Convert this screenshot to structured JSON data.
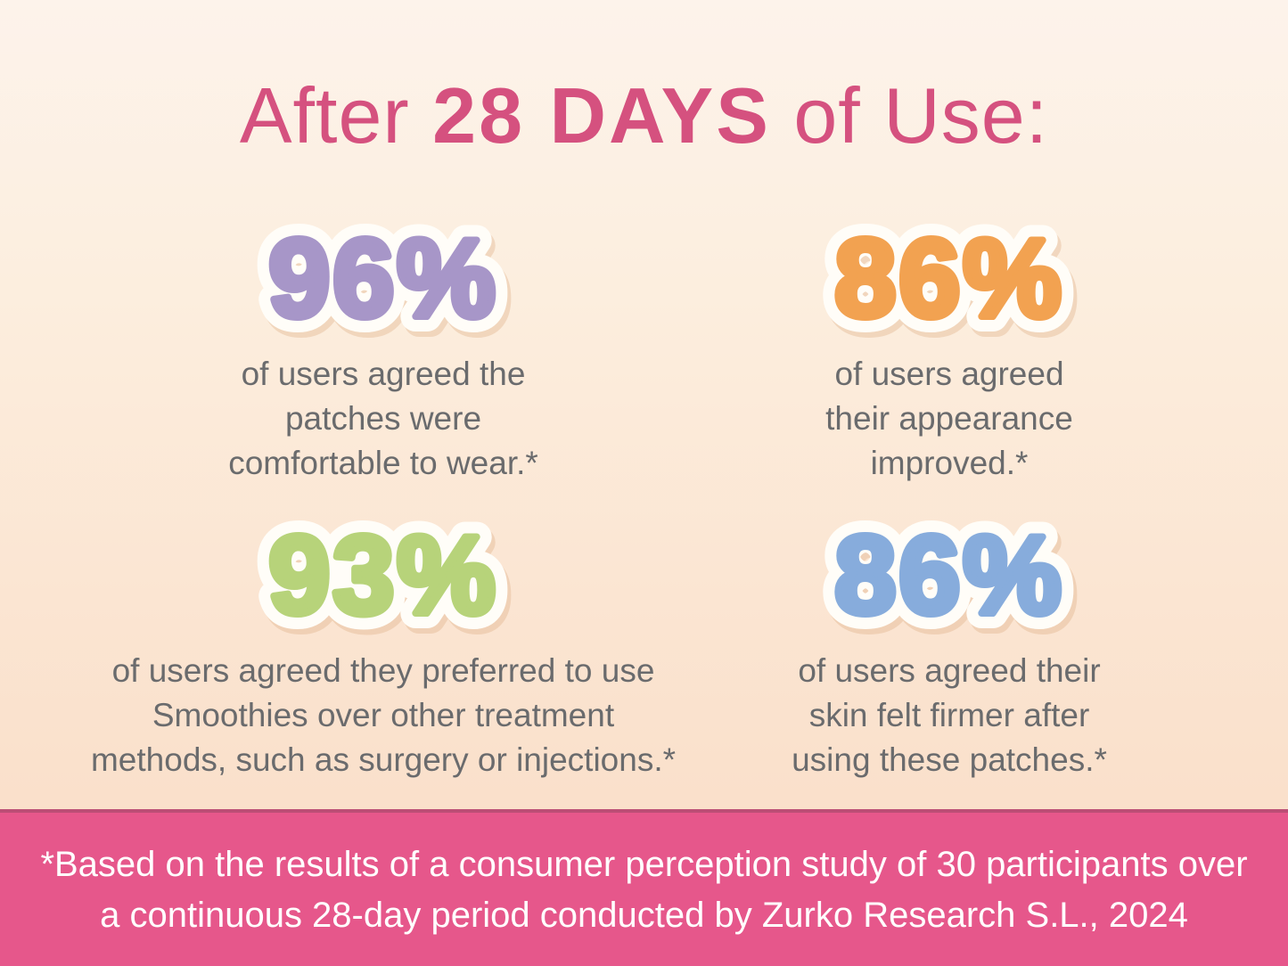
{
  "title": {
    "prefix": "After ",
    "highlight": "28 DAYS",
    "suffix": " of Use:",
    "color": "#d5517f"
  },
  "stats": [
    {
      "value": "96%",
      "accent_color": "#a796c8",
      "description": "of users agreed the\npatches were\ncomfortable to wear.*"
    },
    {
      "value": "86%",
      "accent_color": "#f2a251",
      "description": "of users agreed\ntheir appearance\nimproved.*"
    },
    {
      "value": "93%",
      "accent_color": "#b7d37a",
      "description": "of users agreed they preferred to use\nSmoothies over other treatment\nmethods, such as surgery or injections.*"
    },
    {
      "value": "86%",
      "accent_color": "#87acdc",
      "description": "of users agreed their\nskin felt firmer after\nusing these patches.*"
    }
  ],
  "footer": {
    "text_line1": "*Based on the results of a consumer perception study of 30 participants over",
    "text_line2": "a continuous 28-day period conducted by Zurko Research S.L., 2024",
    "background_color": "#e6578b",
    "border_color": "#bb4e75",
    "text_color": "#ffffff"
  },
  "colors": {
    "background_top": "#fdf3eb",
    "background_bottom": "#f9dcc5",
    "body_text": "#6a6b6d",
    "stat_outline": "#fffdf8",
    "title_pink": "#d5517f"
  },
  "chart_data": {
    "type": "table",
    "title": "After 28 DAYS of Use:",
    "unit": "% of users agreeing",
    "categories": [
      "the patches were comfortable to wear",
      "their appearance improved",
      "they preferred to use Smoothies over other treatment methods, such as surgery or injections",
      "their skin felt firmer after using these patches"
    ],
    "values": [
      96,
      86,
      93,
      86
    ],
    "source_note": "*Based on the results of a consumer perception study of 30 participants over a continuous 28-day period conducted by Zurko Research S.L., 2024"
  }
}
